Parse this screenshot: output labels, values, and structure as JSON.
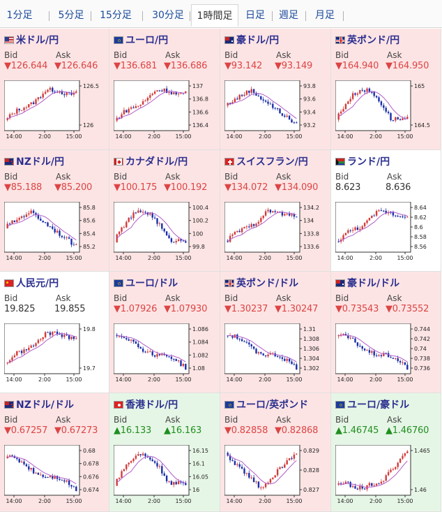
{
  "tabs": [
    {
      "label": "1分足",
      "active": false
    },
    {
      "label": "5分足",
      "active": false
    },
    {
      "label": "15分足",
      "active": false
    },
    {
      "label": "30分足",
      "active": false
    },
    {
      "label": "1時間足",
      "active": true
    },
    {
      "label": "日足",
      "active": false
    },
    {
      "label": "週足",
      "active": false
    },
    {
      "label": "月足",
      "active": false
    }
  ],
  "labels": {
    "bid": "Bid",
    "ask": "Ask"
  },
  "colors": {
    "down_bg": "#fde4e4",
    "up_bg": "#e6f6e6",
    "down_text": "#d44444",
    "up_text": "#1f8f1f",
    "candle_up": "#d33a3a",
    "candle_down": "#1a2ea8",
    "ma": "#b05cc8"
  },
  "pairs": [
    {
      "name": "米ドル/円",
      "flag": "us",
      "trend": "down",
      "bid": "▼126.644",
      "ask": "▼126.646",
      "y_ticks": [
        "126.5",
        "126"
      ],
      "x_ticks": [
        "14:00",
        "2:00",
        "15:00"
      ],
      "shape": "rise"
    },
    {
      "name": "ユーロ/円",
      "flag": "eu",
      "trend": "down",
      "bid": "▼136.681",
      "ask": "▼136.686",
      "y_ticks": [
        "137",
        "136.8",
        "136.6",
        "136.4"
      ],
      "x_ticks": [
        "14:00",
        "2:00",
        "15:00"
      ],
      "shape": "rise"
    },
    {
      "name": "豪ドル/円",
      "flag": "au",
      "trend": "down",
      "bid": "▼93.142",
      "ask": "▼93.149",
      "y_ticks": [
        "93.8",
        "93.6",
        "93.4",
        "93.2"
      ],
      "x_ticks": [
        "14:00",
        "2:00",
        "15:00"
      ],
      "shape": "humpfall"
    },
    {
      "name": "英ポンド/円",
      "flag": "gb",
      "trend": "down",
      "bid": "▼164.940",
      "ask": "▼164.950",
      "y_ticks": [
        "165",
        "164.5"
      ],
      "x_ticks": [
        "14:00",
        "2:00",
        "15:00"
      ],
      "shape": "hump"
    },
    {
      "name": "NZドル/円",
      "flag": "nz",
      "trend": "down",
      "bid": "▼85.188",
      "ask": "▼85.200",
      "y_ticks": [
        "85.8",
        "85.6",
        "85.4",
        "85.2"
      ],
      "x_ticks": [
        "14:00",
        "2:00",
        "15:00"
      ],
      "shape": "humpfall"
    },
    {
      "name": "カナダドル/円",
      "flag": "ca",
      "trend": "down",
      "bid": "▼100.175",
      "ask": "▼100.192",
      "y_ticks": [
        "100.4",
        "100.2",
        "100",
        "99.8"
      ],
      "x_ticks": [
        "14:00",
        "2:00",
        "15:00"
      ],
      "shape": "hump"
    },
    {
      "name": "スイスフラン/円",
      "flag": "ch",
      "trend": "down",
      "bid": "▼134.072",
      "ask": "▼134.090",
      "y_ticks": [
        "134.2",
        "134",
        "133.8",
        "133.6"
      ],
      "x_ticks": [
        "14:00",
        "2:00",
        "15:00"
      ],
      "shape": "rise"
    },
    {
      "name": "ランド/円",
      "flag": "za",
      "trend": "flat",
      "bid": "8.623",
      "ask": "8.636",
      "y_ticks": [
        "8.64",
        "8.62",
        "8.6",
        "8.58",
        "8.56"
      ],
      "x_ticks": [
        "14:00",
        "2:00",
        "15:00"
      ],
      "shape": "rise"
    },
    {
      "name": "人民元/円",
      "flag": "cn",
      "trend": "flat",
      "bid": "19.825",
      "ask": "19.855",
      "y_ticks": [
        "19.8",
        "19.7"
      ],
      "x_ticks": [
        "14:00",
        "2:00",
        "15:00"
      ],
      "shape": "rise"
    },
    {
      "name": "ユーロ/ドル",
      "flag": "eu",
      "trend": "down",
      "bid": "▼1.07926",
      "ask": "▼1.07930",
      "y_ticks": [
        "1.086",
        "1.084",
        "1.082",
        "1.08"
      ],
      "x_ticks": [
        "14:00",
        "2:00",
        "15:00"
      ],
      "shape": "fall"
    },
    {
      "name": "英ポンド/ドル",
      "flag": "gb",
      "trend": "down",
      "bid": "▼1.30237",
      "ask": "▼1.30247",
      "y_ticks": [
        "1.31",
        "1.308",
        "1.306",
        "1.304",
        "1.302"
      ],
      "x_ticks": [
        "14:00",
        "2:00",
        "15:00"
      ],
      "shape": "fall"
    },
    {
      "name": "豪ドル/ドル",
      "flag": "au",
      "trend": "down",
      "bid": "▼0.73543",
      "ask": "▼0.73552",
      "y_ticks": [
        "0.744",
        "0.742",
        "0.74",
        "0.738",
        "0.736"
      ],
      "x_ticks": [
        "14:00",
        "2:00",
        "15:00"
      ],
      "shape": "fall"
    },
    {
      "name": "NZドル/ドル",
      "flag": "nz",
      "trend": "down",
      "bid": "▼0.67257",
      "ask": "▼0.67273",
      "y_ticks": [
        "0.68",
        "0.678",
        "0.676",
        "0.674"
      ],
      "x_ticks": [
        "14:00",
        "2:00",
        "15:00"
      ],
      "shape": "fall"
    },
    {
      "name": "香港ドル/円",
      "flag": "hk",
      "trend": "up",
      "bid": "▲16.133",
      "ask": "▲16.163",
      "y_ticks": [
        "16.15",
        "16.1",
        "16.05",
        "16"
      ],
      "x_ticks": [
        "14:00",
        "2:00",
        "15:00"
      ],
      "shape": "hump"
    },
    {
      "name": "ユーロ/英ポンド",
      "flag": "eu",
      "trend": "down",
      "bid": "▼0.82858",
      "ask": "▼0.82868",
      "y_ticks": [
        "0.829",
        "0.828",
        "0.827"
      ],
      "x_ticks": [
        "14:00",
        "2:00",
        "15:00"
      ],
      "shape": "vee"
    },
    {
      "name": "ユーロ/豪ドル",
      "flag": "eu",
      "trend": "up",
      "bid": "▲1.46745",
      "ask": "▲1.46760",
      "y_ticks": [
        "1.465",
        "1.46"
      ],
      "x_ticks": [
        "14:00",
        "2:00",
        "15:00"
      ],
      "shape": "climb"
    }
  ]
}
